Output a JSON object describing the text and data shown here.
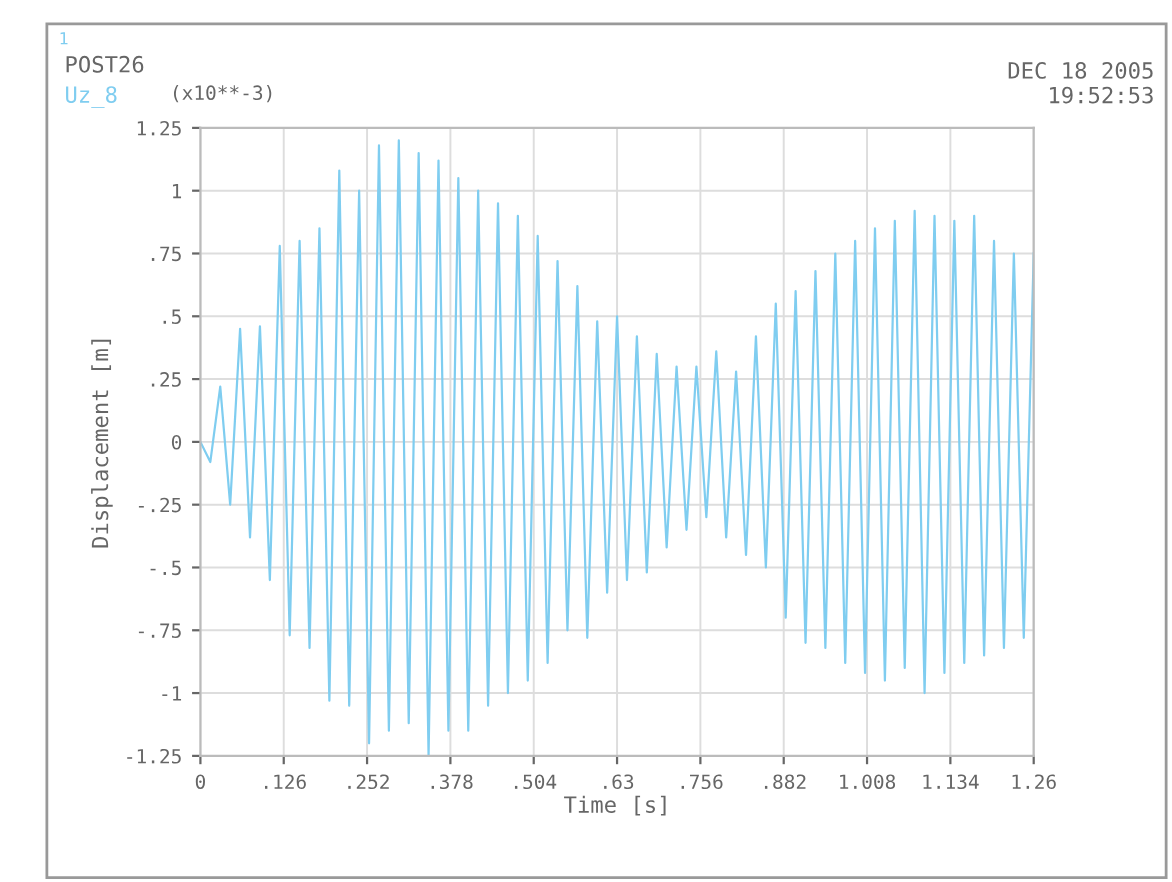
{
  "chart_data": {
    "type": "line",
    "title": "POST26",
    "xlabel": "Time [s]",
    "ylabel": "Displacement [m]",
    "annotations": [
      "1",
      "(x10**-3)",
      "DEC 18 2005",
      "19:52:53"
    ],
    "legend": "top left",
    "grid": true,
    "xlim": [
      0,
      1.26
    ],
    "ylim": [
      -1.25,
      1.25
    ],
    "xticks": [
      0,
      {
        "value": 0.126,
        "label": ".126"
      },
      {
        "value": 0.252,
        "label": ".252"
      },
      {
        "value": 0.378,
        "label": ".378"
      },
      {
        "value": 0.504,
        "label": ".504"
      },
      {
        "value": 0.63,
        "label": ".63"
      },
      {
        "value": 0.756,
        "label": ".756"
      },
      {
        "value": 0.882,
        "label": ".882"
      },
      {
        "value": 1.008,
        "label": "1.008"
      },
      {
        "value": 1.134,
        "label": "1.134"
      },
      1.26
    ],
    "yticks": [
      -1.25,
      -1,
      {
        "value": -0.75,
        "label": "-.75"
      },
      {
        "value": -0.5,
        "label": "-.5"
      },
      {
        "value": -0.25,
        "label": "-.25"
      },
      0,
      {
        "value": 0.25,
        "label": ".25"
      },
      {
        "value": 0.5,
        "label": ".5"
      },
      {
        "value": 0.75,
        "label": ".75"
      },
      1,
      1.25
    ],
    "series": [
      {
        "name": "Uz_8",
        "color": "#7fcdf0",
        "x": [
          0,
          0.015,
          0.03,
          0.045,
          0.06,
          0.075,
          0.09,
          0.105,
          0.12,
          0.135,
          0.15,
          0.165,
          0.18,
          0.195,
          0.21,
          0.225,
          0.24,
          0.255,
          0.27,
          0.285,
          0.3,
          0.315,
          0.33,
          0.345,
          0.36,
          0.375,
          0.39,
          0.405,
          0.42,
          0.435,
          0.45,
          0.465,
          0.48,
          0.495,
          0.51,
          0.525,
          0.54,
          0.555,
          0.57,
          0.585,
          0.6,
          0.615,
          0.63,
          0.645,
          0.66,
          0.675,
          0.69,
          0.705,
          0.72,
          0.735,
          0.75,
          0.765,
          0.78,
          0.795,
          0.81,
          0.825,
          0.84,
          0.855,
          0.87,
          0.885,
          0.9,
          0.915,
          0.93,
          0.945,
          0.96,
          0.975,
          0.99,
          1.005,
          1.02,
          1.035,
          1.05,
          1.065,
          1.08,
          1.095,
          1.11,
          1.125,
          1.14,
          1.155,
          1.17,
          1.185,
          1.2,
          1.215,
          1.23,
          1.245,
          1.26
        ],
        "values": [
          0,
          -0.08,
          0.22,
          -0.25,
          0.45,
          -0.38,
          0.46,
          -0.55,
          0.78,
          -0.77,
          0.8,
          -0.82,
          0.85,
          -1.03,
          1.08,
          -1.05,
          1.0,
          -1.2,
          1.18,
          -1.15,
          1.2,
          -1.12,
          1.15,
          -1.25,
          1.12,
          -1.15,
          1.05,
          -1.15,
          1.0,
          -1.05,
          0.95,
          -1.0,
          0.9,
          -0.95,
          0.82,
          -0.88,
          0.72,
          -0.75,
          0.62,
          -0.78,
          0.48,
          -0.6,
          0.5,
          -0.55,
          0.42,
          -0.52,
          0.35,
          -0.42,
          0.3,
          -0.35,
          0.3,
          -0.3,
          0.36,
          -0.38,
          0.28,
          -0.45,
          0.42,
          -0.5,
          0.55,
          -0.7,
          0.6,
          -0.8,
          0.68,
          -0.82,
          0.75,
          -0.88,
          0.8,
          -0.92,
          0.85,
          -0.95,
          0.88,
          -0.9,
          0.92,
          -1.0,
          0.9,
          -0.92,
          0.88,
          -0.88,
          0.9,
          -0.85,
          0.8,
          -0.82,
          0.75,
          -0.78,
          0.75
        ]
      }
    ]
  }
}
